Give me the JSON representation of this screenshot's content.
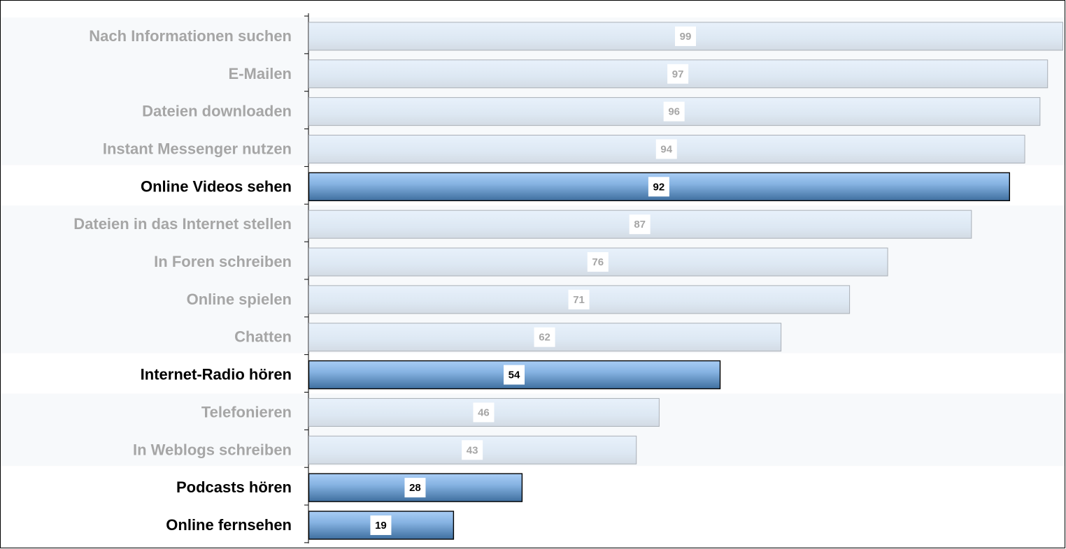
{
  "chart_data": {
    "type": "bar",
    "orientation": "horizontal",
    "categories": [
      "Nach Informationen suchen",
      "E-Mailen",
      "Dateien downloaden",
      "Instant Messenger nutzen",
      "Online Videos sehen",
      "Dateien in das Internet stellen",
      "In Foren schreiben",
      "Online spielen",
      "Chatten",
      "Internet-Radio hören",
      "Telefonieren",
      "In Weblogs schreiben",
      "Podcasts hören",
      "Online fernsehen"
    ],
    "values": [
      99,
      97,
      96,
      94,
      92,
      87,
      76,
      71,
      62,
      54,
      46,
      43,
      28,
      19
    ],
    "value_labels": [
      "99",
      "97",
      "96",
      "94",
      "92",
      "87",
      "76",
      "71",
      "62",
      "54",
      "46",
      "43",
      "28",
      "19"
    ],
    "highlighted": [
      false,
      false,
      false,
      false,
      true,
      false,
      false,
      false,
      false,
      true,
      false,
      false,
      true,
      true
    ],
    "xlim": [
      0,
      99
    ],
    "title": "",
    "xlabel": "",
    "ylabel": "",
    "grid": false,
    "legend": "none",
    "colors": {
      "highlight_top": "#a9cdf5",
      "highlight_bottom": "#3f6f9f",
      "highlight_border": "#000000",
      "muted_top": "#e8f1fb",
      "muted_bottom": "#d3dbe4",
      "muted_border": "#a9afb6",
      "highlight_text": "#000000",
      "muted_text": "#a6a6a6",
      "band_bg": "#f7f9fb"
    }
  }
}
